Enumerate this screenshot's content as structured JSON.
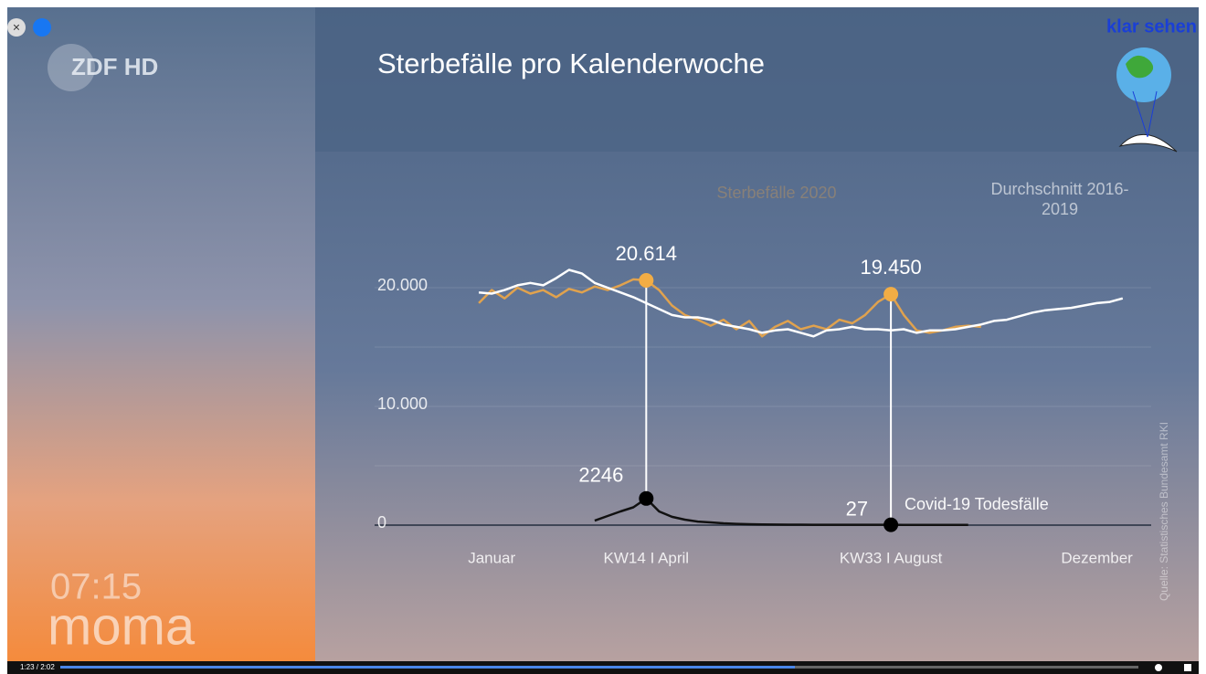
{
  "overlay": {
    "watermark": "klar sehen",
    "clock": "07:15",
    "show": "moma",
    "player_time": "1:23 / 2:02"
  },
  "chart_data": {
    "type": "line",
    "title": "Sterbefälle pro Kalenderwoche",
    "source": "Quelle: Statistisches Bundesamt RKI",
    "x": [
      1,
      2,
      3,
      4,
      5,
      6,
      7,
      8,
      9,
      10,
      11,
      12,
      13,
      14,
      15,
      16,
      17,
      18,
      19,
      20,
      21,
      22,
      23,
      24,
      25,
      26,
      27,
      28,
      29,
      30,
      31,
      32,
      33,
      34,
      35,
      36,
      37,
      38,
      39,
      40,
      41,
      42,
      43,
      44,
      45,
      46,
      47,
      48,
      49,
      50,
      51
    ],
    "xlim": [
      0,
      53
    ],
    "xticks": [
      {
        "value": 2,
        "label": "Januar"
      },
      {
        "value": 14,
        "label": "KW14 I April"
      },
      {
        "value": 33,
        "label": "KW33 I August"
      },
      {
        "value": 49,
        "label": "Dezember"
      }
    ],
    "ylim": [
      -2000,
      25000
    ],
    "yticks": [
      {
        "value": 0,
        "label": "0"
      },
      {
        "value": 10000,
        "label": "10.000"
      },
      {
        "value": 20000,
        "label": "20.000"
      }
    ],
    "gridlines": [
      0,
      5000,
      10000,
      15000,
      20000
    ],
    "grid": true,
    "series": [
      {
        "name": "Sterbefälle 2020",
        "color": "#e0a24e",
        "values": [
          18700,
          19800,
          19100,
          20000,
          19500,
          19800,
          19200,
          19900,
          19600,
          20100,
          19800,
          20200,
          20700,
          20614,
          19800,
          18500,
          17700,
          17300,
          16800,
          17300,
          16500,
          17200,
          15900,
          16700,
          17200,
          16500,
          16800,
          16500,
          17300,
          17000,
          17700,
          18800,
          19450,
          17700,
          16400,
          16200,
          16400,
          16700,
          16800,
          16700,
          null,
          null,
          null,
          null,
          null,
          null,
          null,
          null,
          null,
          null,
          null
        ],
        "value_labels": [
          null,
          null,
          null,
          null,
          null,
          null,
          null,
          null,
          null,
          null,
          null,
          null,
          null,
          "20.614",
          null,
          null,
          null,
          null,
          null,
          null,
          null,
          null,
          null,
          null,
          null,
          null,
          null,
          null,
          null,
          null,
          null,
          null,
          "19.450",
          null,
          null,
          null,
          null,
          null,
          null,
          null,
          null,
          null,
          null,
          null,
          null,
          null,
          null,
          null,
          null,
          null,
          null
        ]
      },
      {
        "name": "Durchschnitt 2016-2019",
        "color": "#ffffff",
        "values": [
          19600,
          19500,
          19800,
          20200,
          20400,
          20200,
          20800,
          21500,
          21200,
          20400,
          20000,
          19600,
          19200,
          18700,
          18200,
          17700,
          17500,
          17500,
          17300,
          16900,
          16700,
          16500,
          16200,
          16400,
          16500,
          16200,
          15900,
          16400,
          16500,
          16700,
          16500,
          16500,
          16400,
          16500,
          16200,
          16400,
          16400,
          16500,
          16700,
          16900,
          17200,
          17300,
          17600,
          17900,
          18100,
          18200,
          18300,
          18500,
          18700,
          18800,
          19100
        ]
      },
      {
        "name": "Covid-19 Todesfälle",
        "color": "#111111",
        "values": [
          null,
          null,
          null,
          null,
          null,
          null,
          null,
          null,
          null,
          380,
          770,
          1150,
          1500,
          2246,
          1150,
          700,
          460,
          300,
          230,
          150,
          110,
          80,
          60,
          50,
          40,
          35,
          30,
          30,
          28,
          28,
          27,
          27,
          27,
          25,
          25,
          22,
          20,
          20,
          20,
          null,
          null,
          null,
          null,
          null,
          null,
          null,
          null,
          null,
          null,
          null,
          null
        ],
        "value_labels": [
          null,
          null,
          null,
          null,
          null,
          null,
          null,
          null,
          null,
          null,
          null,
          null,
          null,
          "2246",
          null,
          null,
          null,
          null,
          null,
          null,
          null,
          null,
          null,
          null,
          null,
          null,
          null,
          null,
          null,
          null,
          null,
          null,
          "27",
          null,
          null,
          null,
          null,
          null,
          null,
          null,
          null,
          null,
          null,
          null,
          null,
          null,
          null,
          null,
          null,
          null,
          null
        ]
      }
    ]
  }
}
